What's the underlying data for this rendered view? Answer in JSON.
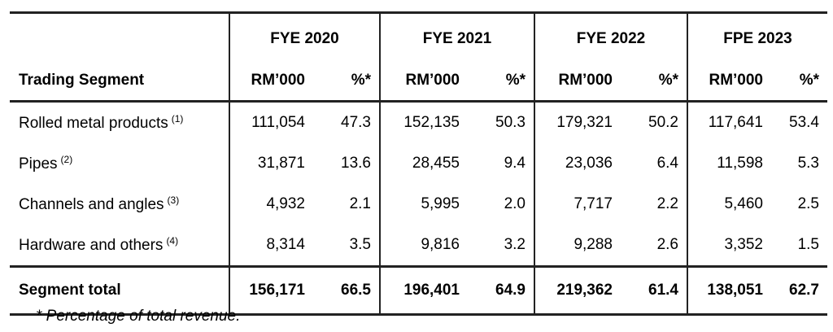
{
  "table": {
    "segment_header": "Trading Segment",
    "periods": [
      {
        "label": "FYE 2020",
        "unit": "RM’000",
        "pct": "%*"
      },
      {
        "label": "FYE 2021",
        "unit": "RM’000",
        "pct": "%*"
      },
      {
        "label": "FYE 2022",
        "unit": "RM’000",
        "pct": "%*"
      },
      {
        "label": "FPE 2023",
        "unit": "RM’000",
        "pct": "%*"
      }
    ],
    "rows": [
      {
        "label": "Rolled metal products",
        "note": "(1)",
        "values": [
          "111,054",
          "47.3",
          "152,135",
          "50.3",
          "179,321",
          "50.2",
          "117,641",
          "53.4"
        ]
      },
      {
        "label": "Pipes",
        "note": "(2)",
        "values": [
          "31,871",
          "13.6",
          "28,455",
          "9.4",
          "23,036",
          "6.4",
          "11,598",
          "5.3"
        ]
      },
      {
        "label": "Channels and angles",
        "note": "(3)",
        "values": [
          "4,932",
          "2.1",
          "5,995",
          "2.0",
          "7,717",
          "2.2",
          "5,460",
          "2.5"
        ]
      },
      {
        "label": "Hardware and others",
        "note": "(4)",
        "values": [
          "8,314",
          "3.5",
          "9,816",
          "3.2",
          "9,288",
          "2.6",
          "3,352",
          "1.5"
        ]
      }
    ],
    "total": {
      "label": "Segment total",
      "values": [
        "156,171",
        "66.5",
        "196,401",
        "64.9",
        "219,362",
        "61.4",
        "138,051",
        "62.7"
      ]
    }
  },
  "footnote": "* Percentage of total revenue."
}
